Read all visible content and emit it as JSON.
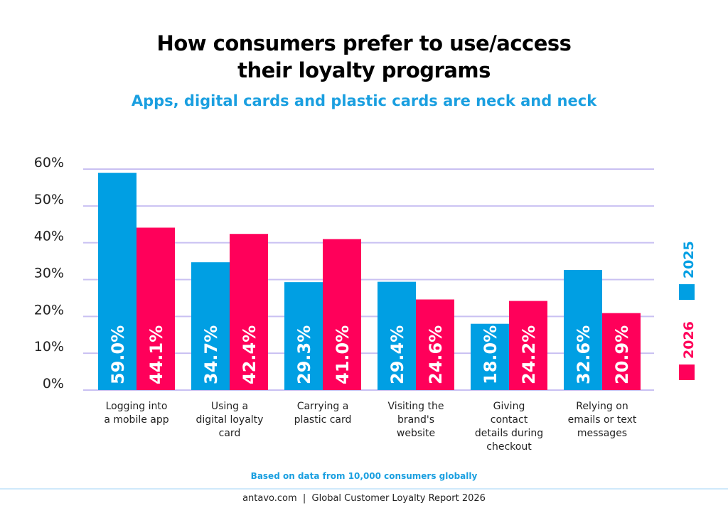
{
  "chart_data": {
    "type": "bar",
    "title": [
      "How consumers prefer to use/access",
      "their loyalty programs"
    ],
    "subtitle": "Apps, digital cards and plastic cards are neck and neck",
    "categories": [
      [
        "Logging into",
        "a mobile app"
      ],
      [
        "Using a",
        "digital loyalty",
        "card"
      ],
      [
        "Carrying a",
        "plastic card"
      ],
      [
        "Visiting the",
        "brand's",
        "website"
      ],
      [
        "Giving",
        "contact",
        "details during",
        "checkout"
      ],
      [
        "Relying on",
        "emails or text",
        "messages"
      ]
    ],
    "series": [
      {
        "name": "2025",
        "color": "#009FE3",
        "values": [
          59.0,
          34.7,
          29.3,
          29.4,
          18.0,
          32.6
        ]
      },
      {
        "name": "2026",
        "color": "#FF005A",
        "values": [
          44.1,
          42.4,
          41.0,
          24.6,
          24.2,
          20.9
        ]
      }
    ],
    "ylim": [
      0,
      60
    ],
    "yticks": [
      "0%",
      "10%",
      "20%",
      "30%",
      "40%",
      "50%",
      "60%"
    ],
    "grid": true,
    "grid_color": "#C9C0F2",
    "legend_position": "right",
    "note": "Based on data from 10,000 consumers globally"
  },
  "footer": "antavo.com  |  Global Customer Loyalty Report 2026"
}
